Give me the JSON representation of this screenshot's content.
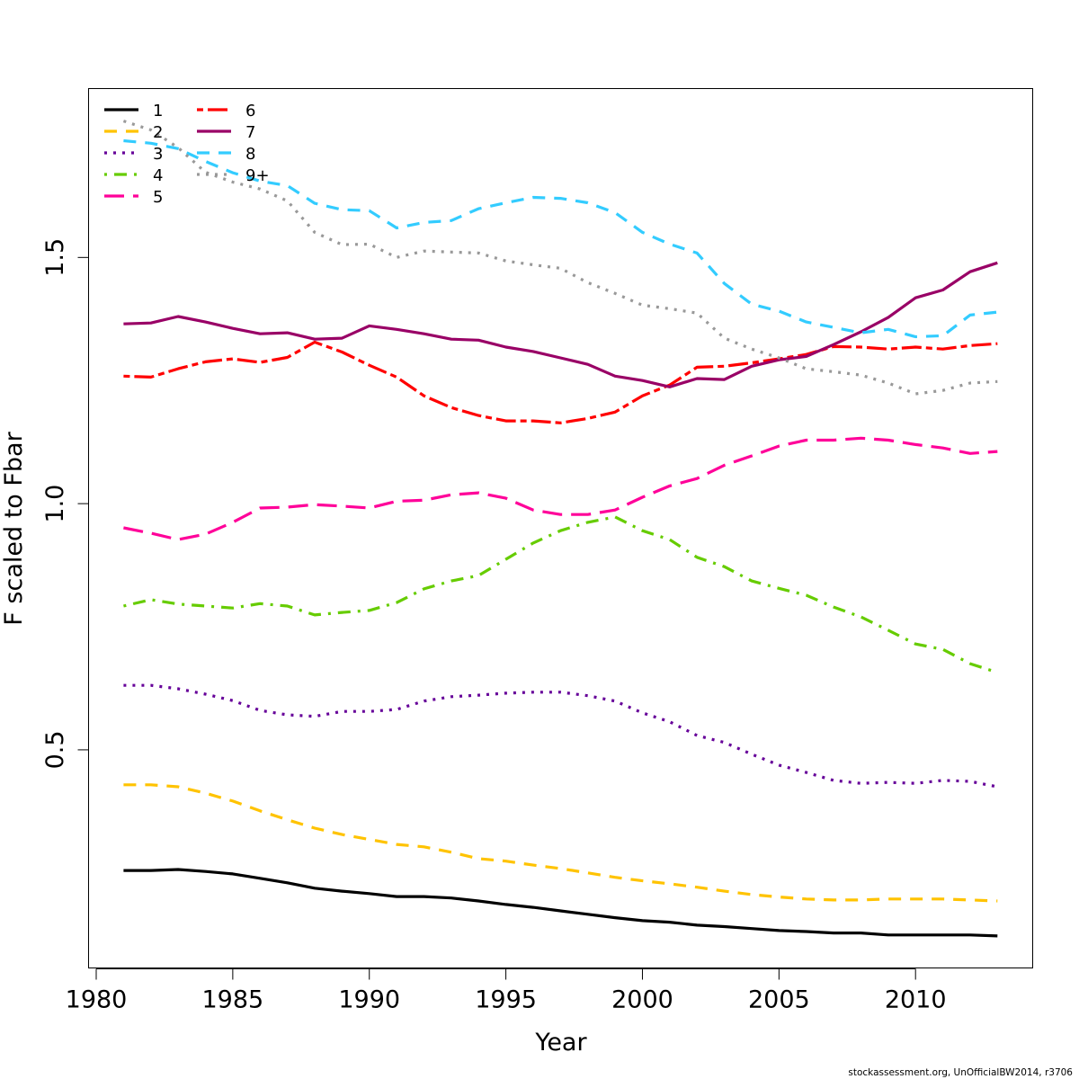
{
  "chart_data": {
    "type": "line",
    "title": "",
    "xlabel": "Year",
    "ylabel": "F scaled to Fbar",
    "xlim": [
      1979.72,
      2014.29
    ],
    "ylim": [
      0.057,
      1.843
    ],
    "xticks": [
      1980,
      1985,
      1990,
      1995,
      2000,
      2005,
      2010
    ],
    "xtick_labels": [
      "1980",
      "1985",
      "1990",
      "1995",
      "2000",
      "2005",
      "2010"
    ],
    "yticks": [
      0.5,
      1.0,
      1.5
    ],
    "ytick_labels": [
      "0.5",
      "1.0",
      "1.5"
    ],
    "grid": false,
    "legend_position": "top-left",
    "legend_columns": 2,
    "x": [
      1981,
      1982,
      1983,
      1984,
      1985,
      1986,
      1987,
      1988,
      1989,
      1990,
      1991,
      1992,
      1993,
      1994,
      1995,
      1996,
      1997,
      1998,
      1999,
      2000,
      2001,
      2002,
      2003,
      2004,
      2005,
      2006,
      2007,
      2008,
      2009,
      2010,
      2011,
      2012,
      2013
    ],
    "series": [
      {
        "name": "1",
        "color": "#000000",
        "dash": "solid",
        "values": [
          0.255,
          0.255,
          0.257,
          0.253,
          0.248,
          0.239,
          0.23,
          0.219,
          0.213,
          0.208,
          0.202,
          0.202,
          0.199,
          0.193,
          0.186,
          0.18,
          0.173,
          0.166,
          0.159,
          0.153,
          0.15,
          0.144,
          0.141,
          0.137,
          0.133,
          0.131,
          0.128,
          0.128,
          0.124,
          0.124,
          0.124,
          0.124,
          0.122
        ]
      },
      {
        "name": "2",
        "color": "#FFC300",
        "dash": "dashed",
        "values": [
          0.429,
          0.429,
          0.425,
          0.412,
          0.396,
          0.376,
          0.358,
          0.341,
          0.328,
          0.318,
          0.308,
          0.303,
          0.292,
          0.279,
          0.274,
          0.266,
          0.259,
          0.25,
          0.241,
          0.234,
          0.228,
          0.221,
          0.213,
          0.206,
          0.201,
          0.197,
          0.195,
          0.195,
          0.197,
          0.197,
          0.197,
          0.195,
          0.193
        ]
      },
      {
        "name": "3",
        "color": "#660099",
        "dash": "dotted",
        "values": [
          0.631,
          0.631,
          0.624,
          0.613,
          0.6,
          0.58,
          0.571,
          0.568,
          0.578,
          0.578,
          0.582,
          0.599,
          0.608,
          0.611,
          0.615,
          0.617,
          0.617,
          0.61,
          0.599,
          0.575,
          0.557,
          0.529,
          0.515,
          0.491,
          0.469,
          0.454,
          0.438,
          0.432,
          0.434,
          0.432,
          0.438,
          0.436,
          0.425
        ]
      },
      {
        "name": "4",
        "color": "#66CC00",
        "dash": "dotdash",
        "values": [
          0.792,
          0.805,
          0.796,
          0.792,
          0.788,
          0.797,
          0.792,
          0.774,
          0.779,
          0.783,
          0.799,
          0.827,
          0.843,
          0.854,
          0.887,
          0.92,
          0.945,
          0.962,
          0.973,
          0.945,
          0.927,
          0.891,
          0.872,
          0.843,
          0.828,
          0.814,
          0.79,
          0.77,
          0.743,
          0.715,
          0.704,
          0.675,
          0.657
        ]
      },
      {
        "name": "5",
        "color": "#FF0099",
        "dash": "longdash",
        "values": [
          0.951,
          0.94,
          0.927,
          0.938,
          0.962,
          0.991,
          0.993,
          0.998,
          0.995,
          0.991,
          1.005,
          1.007,
          1.018,
          1.022,
          1.011,
          0.987,
          0.978,
          0.978,
          0.987,
          1.013,
          1.036,
          1.051,
          1.078,
          1.097,
          1.117,
          1.129,
          1.129,
          1.133,
          1.129,
          1.12,
          1.113,
          1.102,
          1.106
        ]
      },
      {
        "name": "6",
        "color": "#FF0000",
        "dash": "twodash",
        "values": [
          1.259,
          1.257,
          1.274,
          1.288,
          1.294,
          1.287,
          1.297,
          1.328,
          1.308,
          1.281,
          1.257,
          1.219,
          1.195,
          1.179,
          1.168,
          1.168,
          1.164,
          1.173,
          1.186,
          1.219,
          1.241,
          1.277,
          1.279,
          1.286,
          1.294,
          1.303,
          1.319,
          1.318,
          1.314,
          1.318,
          1.314,
          1.321,
          1.325
        ]
      },
      {
        "name": "7",
        "color": "#990066",
        "dash": "solid",
        "values": [
          1.365,
          1.367,
          1.38,
          1.369,
          1.356,
          1.345,
          1.347,
          1.334,
          1.336,
          1.361,
          1.354,
          1.345,
          1.334,
          1.332,
          1.318,
          1.309,
          1.296,
          1.283,
          1.259,
          1.25,
          1.237,
          1.254,
          1.252,
          1.279,
          1.292,
          1.299,
          1.323,
          1.349,
          1.378,
          1.418,
          1.434,
          1.471,
          1.489
        ]
      },
      {
        "name": "8",
        "color": "#33CCFF",
        "dash": "dashed",
        "values": [
          1.737,
          1.732,
          1.721,
          1.695,
          1.672,
          1.655,
          1.646,
          1.61,
          1.597,
          1.595,
          1.56,
          1.571,
          1.575,
          1.599,
          1.611,
          1.622,
          1.62,
          1.611,
          1.591,
          1.551,
          1.527,
          1.509,
          1.447,
          1.405,
          1.391,
          1.369,
          1.358,
          1.347,
          1.354,
          1.339,
          1.341,
          1.383,
          1.389
        ]
      },
      {
        "name": "9+",
        "color": "#999999",
        "dash": "dotted",
        "values": [
          1.777,
          1.759,
          1.723,
          1.673,
          1.653,
          1.639,
          1.615,
          1.551,
          1.526,
          1.527,
          1.5,
          1.513,
          1.511,
          1.509,
          1.493,
          1.485,
          1.478,
          1.449,
          1.427,
          1.403,
          1.396,
          1.387,
          1.336,
          1.314,
          1.296,
          1.274,
          1.268,
          1.261,
          1.245,
          1.223,
          1.23,
          1.245,
          1.248
        ]
      }
    ]
  },
  "footer": {
    "credit": "stockassessment.org, UnOfficialBW2014, r3706"
  }
}
